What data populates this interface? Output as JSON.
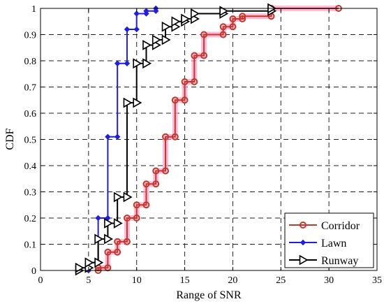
{
  "chart_data": {
    "type": "line",
    "step": true,
    "title": "",
    "xlabel": "Range of SNR",
    "ylabel": "CDF",
    "xlim": [
      0,
      35
    ],
    "ylim": [
      0,
      1
    ],
    "xticks": [
      0,
      5,
      10,
      15,
      20,
      25,
      30,
      35
    ],
    "yticks": [
      0,
      0.1,
      0.2,
      0.3,
      0.4,
      0.5,
      0.6,
      0.7,
      0.8,
      0.9,
      1
    ],
    "ytick_labels": [
      "0",
      "0.1",
      "0.2",
      "0.3",
      "0.4",
      "0.5",
      "0.6",
      "0.7",
      "0.8",
      "0.9",
      "1"
    ],
    "grid": true,
    "legend_position": "bottom-right",
    "series": [
      {
        "name": "Corridor",
        "color": "#c0392b",
        "glow": "#ff9ec8",
        "marker": "circle",
        "points": [
          [
            6,
            0.0
          ],
          [
            6,
            0.01
          ],
          [
            7,
            0.01
          ],
          [
            7,
            0.07
          ],
          [
            8,
            0.07
          ],
          [
            8,
            0.11
          ],
          [
            9,
            0.11
          ],
          [
            9,
            0.2
          ],
          [
            10,
            0.2
          ],
          [
            10,
            0.25
          ],
          [
            11,
            0.25
          ],
          [
            11,
            0.33
          ],
          [
            12,
            0.33
          ],
          [
            12,
            0.38
          ],
          [
            13,
            0.38
          ],
          [
            13,
            0.51
          ],
          [
            14,
            0.51
          ],
          [
            14,
            0.65
          ],
          [
            15,
            0.65
          ],
          [
            15,
            0.72
          ],
          [
            16,
            0.72
          ],
          [
            16,
            0.82
          ],
          [
            17,
            0.82
          ],
          [
            17,
            0.9
          ],
          [
            19,
            0.9
          ],
          [
            19,
            0.93
          ],
          [
            20,
            0.93
          ],
          [
            20,
            0.96
          ],
          [
            21,
            0.96
          ],
          [
            21,
            0.97
          ],
          [
            24,
            0.97
          ],
          [
            24,
            1.0
          ],
          [
            31,
            1.0
          ]
        ]
      },
      {
        "name": "Lawn",
        "color": "#1f1fe0",
        "marker": "diamond",
        "points": [
          [
            5,
            0.0
          ],
          [
            5,
            0.03
          ],
          [
            6,
            0.03
          ],
          [
            6,
            0.2
          ],
          [
            7,
            0.2
          ],
          [
            7,
            0.51
          ],
          [
            8,
            0.51
          ],
          [
            8,
            0.79
          ],
          [
            9,
            0.79
          ],
          [
            9,
            0.92
          ],
          [
            10,
            0.92
          ],
          [
            10,
            0.98
          ],
          [
            11,
            0.98
          ],
          [
            11,
            0.99
          ],
          [
            12,
            0.99
          ],
          [
            12,
            1.0
          ]
        ]
      },
      {
        "name": "Runway",
        "color": "#000000",
        "marker": "triangle-right",
        "points": [
          [
            4,
            0.0
          ],
          [
            4,
            0.01
          ],
          [
            5,
            0.01
          ],
          [
            5,
            0.03
          ],
          [
            6,
            0.03
          ],
          [
            6,
            0.12
          ],
          [
            7,
            0.12
          ],
          [
            7,
            0.18
          ],
          [
            8,
            0.18
          ],
          [
            8,
            0.28
          ],
          [
            9,
            0.28
          ],
          [
            9,
            0.64
          ],
          [
            10,
            0.64
          ],
          [
            10,
            0.79
          ],
          [
            11,
            0.79
          ],
          [
            11,
            0.86
          ],
          [
            12,
            0.86
          ],
          [
            12,
            0.88
          ],
          [
            13,
            0.88
          ],
          [
            13,
            0.93
          ],
          [
            14,
            0.93
          ],
          [
            14,
            0.95
          ],
          [
            15,
            0.95
          ],
          [
            15,
            0.96
          ],
          [
            16,
            0.96
          ],
          [
            16,
            0.98
          ],
          [
            19,
            0.98
          ],
          [
            19,
            0.99
          ],
          [
            24,
            0.99
          ],
          [
            24,
            1.0
          ]
        ]
      }
    ]
  }
}
